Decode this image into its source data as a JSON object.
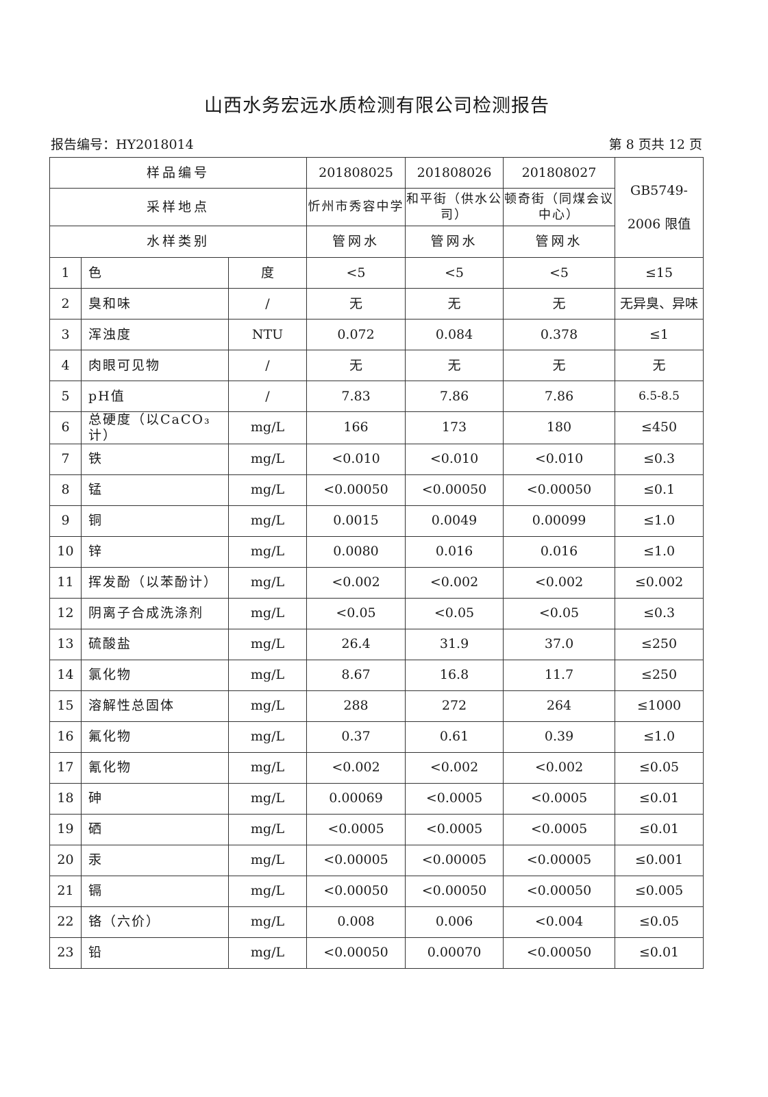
{
  "title": "山西水务宏远水质检测有限公司检测报告",
  "report_no": "报告编号：HY2018014",
  "page_no": "第 8 页共 12 页",
  "header": {
    "sample_no_label": "样品编号",
    "location_label": "采样地点",
    "type_label": "水样类别",
    "limit_label_1": "GB5749-",
    "limit_label_2": "2006 限值",
    "samples": [
      {
        "no": "201808025",
        "location": "忻州市秀容中学",
        "type": "管网水"
      },
      {
        "no": "201808026",
        "location": "和平街（供水公司）",
        "type": "管网水"
      },
      {
        "no": "201808027",
        "location": "顿奇街（同煤会议中心）",
        "type": "管网水"
      }
    ]
  },
  "rows": [
    [
      "1",
      "色",
      "度",
      "<5",
      "<5",
      "<5",
      "≤15"
    ],
    [
      "2",
      "臭和味",
      "/",
      "无",
      "无",
      "无",
      "无异臭、异味"
    ],
    [
      "3",
      "浑浊度",
      "NTU",
      "0.072",
      "0.084",
      "0.378",
      "≤1"
    ],
    [
      "4",
      "肉眼可见物",
      "/",
      "无",
      "无",
      "无",
      "无"
    ],
    [
      "5",
      "pH值",
      "/",
      "7.83",
      "7.86",
      "7.86",
      "6.5-8.5"
    ],
    [
      "6",
      "总硬度（以CaCO₃计）",
      "mg/L",
      "166",
      "173",
      "180",
      "≤450"
    ],
    [
      "7",
      "铁",
      "mg/L",
      "<0.010",
      "<0.010",
      "<0.010",
      "≤0.3"
    ],
    [
      "8",
      "锰",
      "mg/L",
      "<0.00050",
      "<0.00050",
      "<0.00050",
      "≤0.1"
    ],
    [
      "9",
      "铜",
      "mg/L",
      "0.0015",
      "0.0049",
      "0.00099",
      "≤1.0"
    ],
    [
      "10",
      "锌",
      "mg/L",
      "0.0080",
      "0.016",
      "0.016",
      "≤1.0"
    ],
    [
      "11",
      "挥发酚（以苯酚计）",
      "mg/L",
      "<0.002",
      "<0.002",
      "<0.002",
      "≤0.002"
    ],
    [
      "12",
      "阴离子合成洗涤剂",
      "mg/L",
      "<0.05",
      "<0.05",
      "<0.05",
      "≤0.3"
    ],
    [
      "13",
      "硫酸盐",
      "mg/L",
      "26.4",
      "31.9",
      "37.0",
      "≤250"
    ],
    [
      "14",
      "氯化物",
      "mg/L",
      "8.67",
      "16.8",
      "11.7",
      "≤250"
    ],
    [
      "15",
      "溶解性总固体",
      "mg/L",
      "288",
      "272",
      "264",
      "≤1000"
    ],
    [
      "16",
      "氟化物",
      "mg/L",
      "0.37",
      "0.61",
      "0.39",
      "≤1.0"
    ],
    [
      "17",
      "氰化物",
      "mg/L",
      "<0.002",
      "<0.002",
      "<0.002",
      "≤0.05"
    ],
    [
      "18",
      "砷",
      "mg/L",
      "0.00069",
      "<0.0005",
      "<0.0005",
      "≤0.01"
    ],
    [
      "19",
      "硒",
      "mg/L",
      "<0.0005",
      "<0.0005",
      "<0.0005",
      "≤0.01"
    ],
    [
      "20",
      "汞",
      "mg/L",
      "<0.00005",
      "<0.00005",
      "<0.00005",
      "≤0.001"
    ],
    [
      "21",
      "镉",
      "mg/L",
      "<0.00050",
      "<0.00050",
      "<0.00050",
      "≤0.005"
    ],
    [
      "22",
      "铬（六价）",
      "mg/L",
      "0.008",
      "0.006",
      "<0.004",
      "≤0.05"
    ],
    [
      "23",
      "铅",
      "mg/L",
      "<0.00050",
      "0.00070",
      "<0.00050",
      "≤0.01"
    ]
  ]
}
